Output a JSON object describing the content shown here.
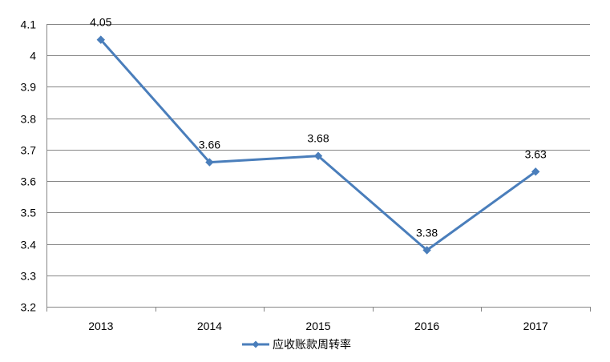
{
  "chart_data": {
    "type": "line",
    "categories": [
      "2013",
      "2014",
      "2015",
      "2016",
      "2017"
    ],
    "series": [
      {
        "name": "应收账款周转率",
        "values": [
          4.05,
          3.66,
          3.68,
          3.38,
          3.63
        ],
        "data_labels": [
          "4.05",
          "3.66",
          "3.68",
          "3.38",
          "3.63"
        ]
      }
    ],
    "ylim": [
      3.2,
      4.1
    ],
    "yticks": [
      "3.2",
      "3.3",
      "3.4",
      "3.5",
      "3.6",
      "3.7",
      "3.8",
      "3.9",
      "4",
      "4.1"
    ],
    "title": "",
    "xlabel": "",
    "ylabel": "",
    "grid": "horizontal",
    "legend_position": "bottom-center",
    "colors": {
      "series": "#4a7ebb",
      "grid": "#868686",
      "axis": "#868686",
      "text": "#000000"
    }
  }
}
